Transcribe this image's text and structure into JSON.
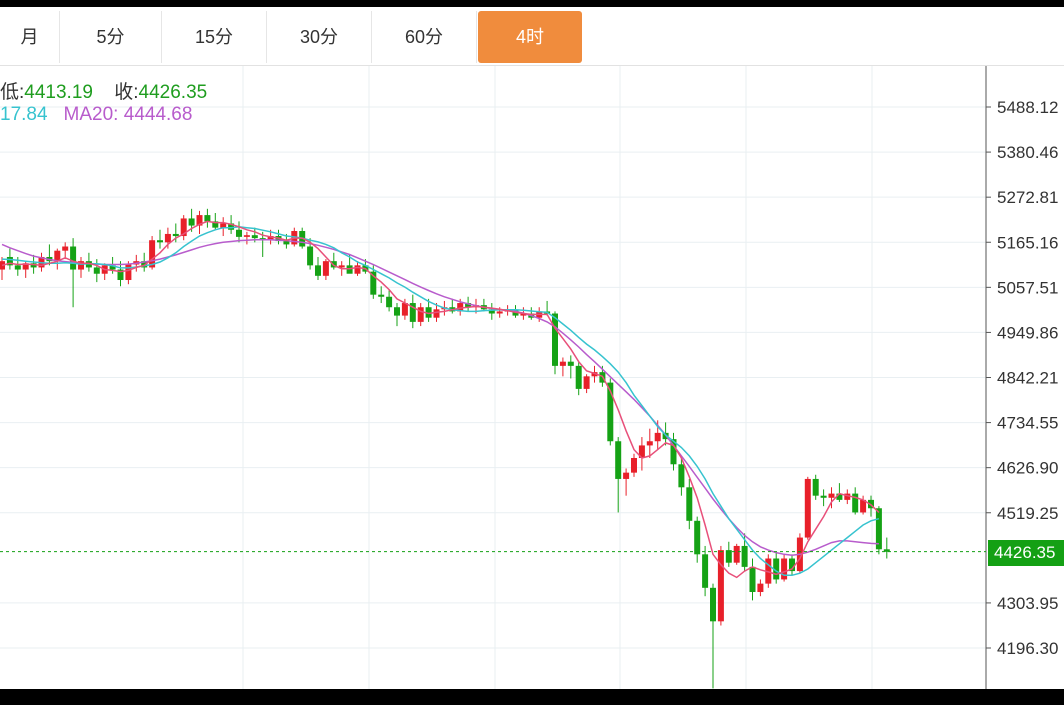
{
  "tabs": [
    {
      "label": "月",
      "active": false
    },
    {
      "label": "5分",
      "active": false
    },
    {
      "label": "15分",
      "active": false
    },
    {
      "label": "30分",
      "active": false
    },
    {
      "label": "60分",
      "active": false
    },
    {
      "label": "4时",
      "active": true
    }
  ],
  "legend": {
    "low_label": "低:",
    "low_value": "4413.19",
    "close_label": "收:",
    "close_value": "4426.35",
    "ma10_value": "17.84",
    "ma20_label": "MA20:",
    "ma20_value": "4444.68"
  },
  "current_price": "4426.35",
  "colors": {
    "up": "#e8202a",
    "down": "#15a215",
    "ma5": "#e8507a",
    "ma10": "#37c3cf",
    "ma20": "#b85ccc",
    "grid": "#e9eff2",
    "price_line": "#14a014"
  },
  "chart_data": {
    "type": "candlestick",
    "y_ticks": [
      "5488.12",
      "5380.46",
      "5272.81",
      "5165.16",
      "5057.51",
      "4949.86",
      "4842.21",
      "4734.55",
      "4626.90",
      "4519.25",
      "4303.95",
      "4196.30"
    ],
    "ylim": [
      4090,
      5560
    ],
    "candles": [
      [
        5100,
        5130,
        5075,
        5120
      ],
      [
        5130,
        5150,
        5100,
        5110
      ],
      [
        5110,
        5130,
        5085,
        5100
      ],
      [
        5100,
        5120,
        5080,
        5115
      ],
      [
        5115,
        5135,
        5090,
        5105
      ],
      [
        5105,
        5140,
        5095,
        5130
      ],
      [
        5130,
        5160,
        5110,
        5120
      ],
      [
        5120,
        5150,
        5100,
        5145
      ],
      [
        5145,
        5165,
        5125,
        5155
      ],
      [
        5155,
        5175,
        5010,
        5100
      ],
      [
        5100,
        5130,
        5080,
        5120
      ],
      [
        5120,
        5140,
        5095,
        5105
      ],
      [
        5105,
        5125,
        5070,
        5090
      ],
      [
        5090,
        5115,
        5075,
        5110
      ],
      [
        5110,
        5130,
        5090,
        5100
      ],
      [
        5100,
        5120,
        5060,
        5075
      ],
      [
        5075,
        5120,
        5065,
        5112
      ],
      [
        5112,
        5135,
        5095,
        5120
      ],
      [
        5120,
        5140,
        5095,
        5105
      ],
      [
        5105,
        5180,
        5100,
        5170
      ],
      [
        5170,
        5195,
        5150,
        5165
      ],
      [
        5165,
        5200,
        5150,
        5185
      ],
      [
        5185,
        5210,
        5165,
        5180
      ],
      [
        5180,
        5230,
        5170,
        5222
      ],
      [
        5222,
        5245,
        5190,
        5205
      ],
      [
        5205,
        5240,
        5185,
        5230
      ],
      [
        5230,
        5245,
        5200,
        5215
      ],
      [
        5215,
        5235,
        5195,
        5200
      ],
      [
        5200,
        5225,
        5180,
        5210
      ],
      [
        5210,
        5230,
        5185,
        5195
      ],
      [
        5195,
        5215,
        5165,
        5178
      ],
      [
        5178,
        5190,
        5160,
        5182
      ],
      [
        5182,
        5200,
        5165,
        5175
      ],
      [
        5175,
        5190,
        5130,
        5172
      ],
      [
        5172,
        5195,
        5160,
        5180
      ],
      [
        5180,
        5195,
        5160,
        5168
      ],
      [
        5168,
        5185,
        5150,
        5160
      ],
      [
        5160,
        5200,
        5155,
        5192
      ],
      [
        5192,
        5200,
        5150,
        5155
      ],
      [
        5155,
        5175,
        5100,
        5110
      ],
      [
        5110,
        5130,
        5075,
        5085
      ],
      [
        5085,
        5125,
        5075,
        5120
      ],
      [
        5120,
        5140,
        5100,
        5105
      ],
      [
        5105,
        5120,
        5085,
        5110
      ],
      [
        5110,
        5135,
        5095,
        5090
      ],
      [
        5090,
        5120,
        5085,
        5110
      ],
      [
        5110,
        5125,
        5090,
        5095
      ],
      [
        5095,
        5110,
        5030,
        5040
      ],
      [
        5040,
        5060,
        5020,
        5035
      ],
      [
        5035,
        5050,
        5000,
        5010
      ],
      [
        5010,
        5020,
        4965,
        4990
      ],
      [
        4990,
        5030,
        4980,
        5020
      ],
      [
        5020,
        5040,
        4960,
        4975
      ],
      [
        4975,
        5020,
        4965,
        5010
      ],
      [
        5010,
        5030,
        4975,
        4985
      ],
      [
        4985,
        5020,
        4975,
        5005
      ],
      [
        5005,
        5025,
        4990,
        5010
      ],
      [
        5010,
        5030,
        4995,
        5000
      ],
      [
        5000,
        5030,
        4990,
        5020
      ],
      [
        5020,
        5035,
        5000,
        5010
      ],
      [
        5010,
        5030,
        4995,
        5015
      ],
      [
        5015,
        5030,
        5000,
        5005
      ],
      [
        5005,
        5020,
        4980,
        4995
      ],
      [
        4995,
        5010,
        4985,
        5000
      ],
      [
        5000,
        5015,
        4990,
        5002
      ],
      [
        5002,
        5015,
        4985,
        4990
      ],
      [
        4990,
        5010,
        4980,
        4995
      ],
      [
        4995,
        5010,
        4980,
        4985
      ],
      [
        4985,
        5010,
        4975,
        5000
      ],
      [
        5000,
        5025,
        4990,
        4995
      ],
      [
        4995,
        5000,
        4850,
        4870
      ],
      [
        4870,
        4890,
        4845,
        4880
      ],
      [
        4880,
        4895,
        4840,
        4870
      ],
      [
        4870,
        4880,
        4800,
        4815
      ],
      [
        4815,
        4850,
        4805,
        4845
      ],
      [
        4845,
        4870,
        4830,
        4855
      ],
      [
        4855,
        4870,
        4820,
        4830
      ],
      [
        4830,
        4840,
        4680,
        4690
      ],
      [
        4690,
        4700,
        4520,
        4600
      ],
      [
        4600,
        4625,
        4560,
        4615
      ],
      [
        4615,
        4660,
        4605,
        4650
      ],
      [
        4650,
        4700,
        4620,
        4680
      ],
      [
        4680,
        4720,
        4650,
        4690
      ],
      [
        4690,
        4740,
        4670,
        4710
      ],
      [
        4710,
        4735,
        4680,
        4695
      ],
      [
        4695,
        4710,
        4620,
        4635
      ],
      [
        4635,
        4650,
        4560,
        4580
      ],
      [
        4580,
        4600,
        4480,
        4500
      ],
      [
        4500,
        4510,
        4400,
        4420
      ],
      [
        4420,
        4440,
        4320,
        4340
      ],
      [
        4340,
        4350,
        4100,
        4260
      ],
      [
        4260,
        4440,
        4250,
        4430
      ],
      [
        4430,
        4450,
        4390,
        4400
      ],
      [
        4400,
        4445,
        4395,
        4440
      ],
      [
        4440,
        4470,
        4380,
        4390
      ],
      [
        4390,
        4410,
        4310,
        4330
      ],
      [
        4330,
        4360,
        4320,
        4350
      ],
      [
        4350,
        4420,
        4340,
        4410
      ],
      [
        4410,
        4425,
        4350,
        4360
      ],
      [
        4360,
        4420,
        4355,
        4410
      ],
      [
        4410,
        4420,
        4370,
        4380
      ],
      [
        4380,
        4470,
        4375,
        4460
      ],
      [
        4460,
        4605,
        4455,
        4600
      ],
      [
        4600,
        4610,
        4550,
        4560
      ],
      [
        4560,
        4575,
        4535,
        4555
      ],
      [
        4555,
        4580,
        4530,
        4565
      ],
      [
        4565,
        4590,
        4545,
        4550
      ],
      [
        4550,
        4575,
        4540,
        4565
      ],
      [
        4565,
        4580,
        4515,
        4520
      ],
      [
        4520,
        4560,
        4515,
        4550
      ],
      [
        4550,
        4560,
        4510,
        4530
      ],
      [
        4530,
        4535,
        4420,
        4432
      ],
      [
        4432,
        4460,
        4410,
        4426
      ]
    ],
    "ma5": [
      5110,
      5115,
      5112,
      5113,
      5112,
      5110,
      5115,
      5120,
      5128,
      5120,
      5115,
      5115,
      5110,
      5100,
      5098,
      5095,
      5098,
      5105,
      5110,
      5125,
      5140,
      5160,
      5175,
      5185,
      5198,
      5208,
      5215,
      5212,
      5212,
      5208,
      5202,
      5195,
      5190,
      5182,
      5178,
      5175,
      5170,
      5175,
      5175,
      5165,
      5150,
      5130,
      5110,
      5102,
      5102,
      5105,
      5102,
      5085,
      5070,
      5052,
      5030,
      5020,
      5010,
      5000,
      4995,
      4998,
      5000,
      5004,
      5008,
      5010,
      5012,
      5010,
      5008,
      5005,
      5002,
      4998,
      4995,
      4993,
      4993,
      4993,
      4960,
      4935,
      4910,
      4880,
      4858,
      4852,
      4845,
      4810,
      4765,
      4715,
      4670,
      4650,
      4655,
      4670,
      4686,
      4680,
      4650,
      4605,
      4555,
      4490,
      4420,
      4395,
      4375,
      4365,
      4380,
      4390,
      4383,
      4378,
      4372,
      4378,
      4385,
      4410,
      4450,
      4480,
      4510,
      4545,
      4565,
      4560,
      4556,
      4550,
      4538,
      4520
    ],
    "ma10": [
      5125,
      5124,
      5122,
      5120,
      5118,
      5116,
      5115,
      5115,
      5116,
      5115,
      5113,
      5114,
      5114,
      5112,
      5109,
      5104,
      5104,
      5106,
      5109,
      5112,
      5118,
      5128,
      5140,
      5155,
      5168,
      5180,
      5188,
      5195,
      5200,
      5200,
      5202,
      5200,
      5198,
      5194,
      5190,
      5185,
      5180,
      5178,
      5175,
      5170,
      5166,
      5160,
      5152,
      5140,
      5130,
      5118,
      5110,
      5100,
      5090,
      5080,
      5068,
      5058,
      5046,
      5035,
      5024,
      5015,
      5008,
      5004,
      5002,
      5000,
      5000,
      5002,
      5003,
      5004,
      5004,
      5004,
      5003,
      5001,
      4999,
      4998,
      4985,
      4970,
      4955,
      4938,
      4922,
      4908,
      4892,
      4875,
      4855,
      4830,
      4800,
      4775,
      4750,
      4725,
      4705,
      4690,
      4675,
      4655,
      4630,
      4600,
      4565,
      4535,
      4505,
      4480,
      4455,
      4430,
      4410,
      4395,
      4380,
      4370,
      4370,
      4375,
      4385,
      4400,
      4415,
      4430,
      4445,
      4460,
      4475,
      4490,
      4500,
      4505
    ],
    "ma20": [
      5160,
      5152,
      5145,
      5138,
      5132,
      5128,
      5124,
      5121,
      5119,
      5117,
      5115,
      5114,
      5113,
      5112,
      5112,
      5112,
      5113,
      5115,
      5118,
      5121,
      5125,
      5130,
      5135,
      5141,
      5147,
      5153,
      5158,
      5162,
      5165,
      5167,
      5169,
      5170,
      5171,
      5171,
      5171,
      5170,
      5169,
      5167,
      5165,
      5162,
      5158,
      5153,
      5148,
      5142,
      5136,
      5128,
      5120,
      5112,
      5103,
      5094,
      5085,
      5076,
      5067,
      5058,
      5050,
      5042,
      5035,
      5029,
      5023,
      5018,
      5014,
      5010,
      5007,
      5004,
      5002,
      5000,
      4996,
      4990,
      4983,
      4975,
      4963,
      4948,
      4932,
      4915,
      4897,
      4880,
      4862,
      4844,
      4826,
      4808,
      4790,
      4770,
      4750,
      4728,
      4705,
      4680,
      4655,
      4630,
      4604,
      4578,
      4552,
      4528,
      4505,
      4484,
      4465,
      4450,
      4438,
      4430,
      4424,
      4420,
      4418,
      4420,
      4425,
      4432,
      4440,
      4448,
      4452,
      4452,
      4450,
      4448,
      4446,
      4445
    ]
  }
}
